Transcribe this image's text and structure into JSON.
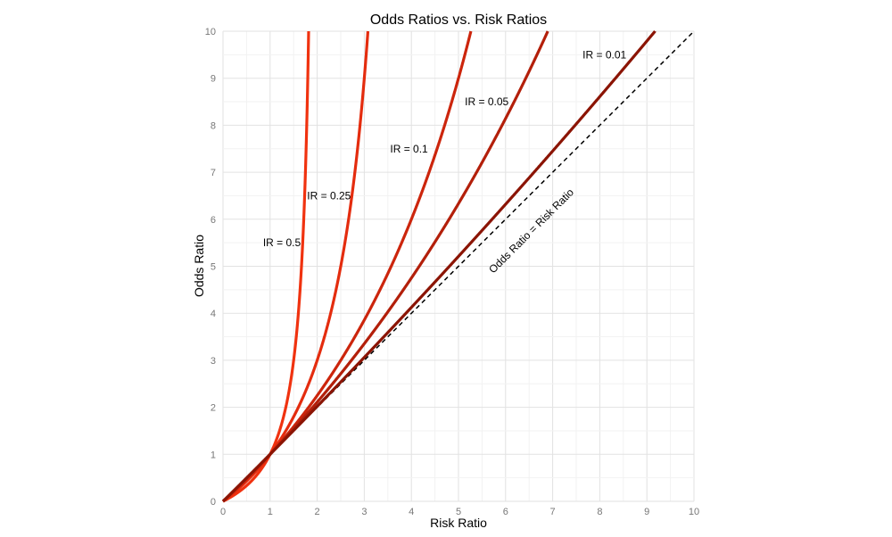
{
  "chart_data": {
    "type": "line",
    "title": "Odds Ratios vs. Risk Ratios",
    "xlabel": "Risk Ratio",
    "ylabel": "Odds Ratio",
    "xlim": [
      0,
      10
    ],
    "ylim": [
      0,
      10
    ],
    "xticks": [
      0,
      1,
      2,
      3,
      4,
      5,
      6,
      7,
      8,
      9,
      10
    ],
    "yticks": [
      0,
      1,
      2,
      3,
      4,
      5,
      6,
      7,
      8,
      9,
      10
    ],
    "grid": true,
    "series": [
      {
        "name": "IR = 0.5",
        "ir": 0.5,
        "color": "#f0320f",
        "label_at": [
          1.25,
          5.5
        ]
      },
      {
        "name": "IR = 0.25",
        "ir": 0.25,
        "color": "#e42c0e",
        "label_at": [
          2.25,
          6.5
        ]
      },
      {
        "name": "IR = 0.1",
        "ir": 0.1,
        "color": "#cc250c",
        "label_at": [
          3.95,
          7.5
        ]
      },
      {
        "name": "IR = 0.05",
        "ir": 0.05,
        "color": "#b31f0a",
        "label_at": [
          5.6,
          8.5
        ]
      },
      {
        "name": "IR = 0.01",
        "ir": 0.01,
        "color": "#8b1404",
        "label_at": [
          8.1,
          9.5
        ]
      }
    ],
    "reference_line": {
      "name": "Odds Ratio = Risk Ratio",
      "x": [
        0,
        10
      ],
      "y": [
        0,
        10
      ],
      "style": "dashed",
      "color": "#000000",
      "label_at": [
        6.6,
        5.7
      ]
    }
  }
}
